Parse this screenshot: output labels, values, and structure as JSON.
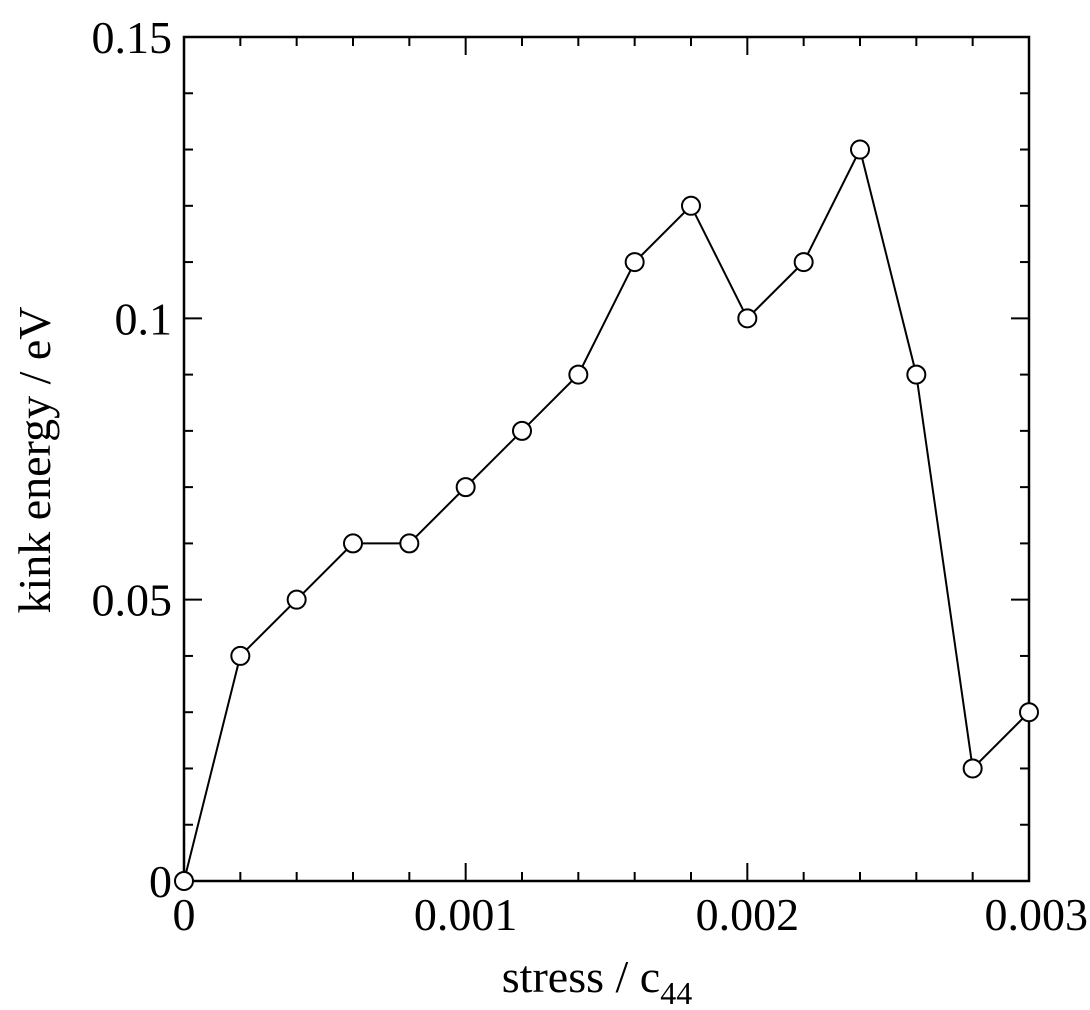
{
  "chart_data": {
    "type": "line",
    "title": "",
    "xlabel": "stress / c",
    "xlabel_subscript": "44",
    "ylabel": "kink energy / eV",
    "xlim": [
      0,
      0.003
    ],
    "ylim": [
      0,
      0.15
    ],
    "x_ticks": [
      0,
      0.001,
      0.002,
      0.003
    ],
    "x_tick_labels": [
      "0",
      "0.001",
      "0.002",
      "0.003"
    ],
    "y_ticks": [
      0,
      0.05,
      0.1,
      0.15
    ],
    "y_tick_labels": [
      "0",
      "0.05",
      "0.1",
      "0.15"
    ],
    "x_minor_step": 0.0002,
    "y_minor_step": 0.01,
    "grid": false,
    "marker": "open-circle",
    "line_color": "#000000",
    "series": [
      {
        "x": [
          0,
          0.0002,
          0.0004,
          0.0006,
          0.0008,
          0.001,
          0.0012,
          0.0014,
          0.0016,
          0.0018,
          0.002,
          0.0022,
          0.0024,
          0.0026,
          0.0028,
          0.003
        ],
        "y": [
          0,
          0.04,
          0.05,
          0.06,
          0.06,
          0.07,
          0.08,
          0.09,
          0.11,
          0.12,
          0.1,
          0.11,
          0.13,
          0.09,
          0.02,
          0.03
        ]
      }
    ]
  }
}
